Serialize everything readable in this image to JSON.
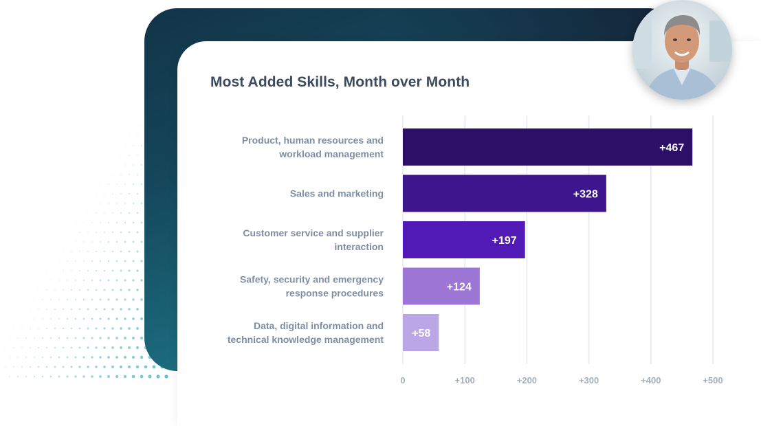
{
  "chart_data": {
    "type": "bar",
    "orientation": "horizontal",
    "title": "Most Added Skills, Month over Month",
    "categories": [
      [
        "Product, human resources and",
        "workload management"
      ],
      [
        "Sales and marketing"
      ],
      [
        "Customer service and supplier",
        "interaction"
      ],
      [
        "Safety, security and emergency",
        "response procedures"
      ],
      [
        "Data, digital information and",
        "technical knowledge management"
      ]
    ],
    "values": [
      467,
      328,
      197,
      124,
      58
    ],
    "value_labels": [
      "+467",
      "+328",
      "+197",
      "+124",
      "+58"
    ],
    "bar_colors": [
      "#2c0f66",
      "#3d168e",
      "#5119b6",
      "#9d76d6",
      "#bca7e6"
    ],
    "xlim": [
      0,
      500
    ],
    "xticks": [
      0,
      100,
      200,
      300,
      400,
      500
    ],
    "xtick_labels": [
      "0",
      "+100",
      "+200",
      "+300",
      "+400",
      "+500"
    ],
    "grid": true,
    "xlabel": "",
    "ylabel": ""
  },
  "colors": {
    "title": "#3c4a5e",
    "category_label": "#7f8ea3",
    "tick_label": "#a3afc0",
    "gridline": "#e3e8ef",
    "backdrop_dark": "#123447",
    "backdrop_teal": "#1f7f8e"
  },
  "avatar": {
    "icon": "person-portrait-icon"
  }
}
